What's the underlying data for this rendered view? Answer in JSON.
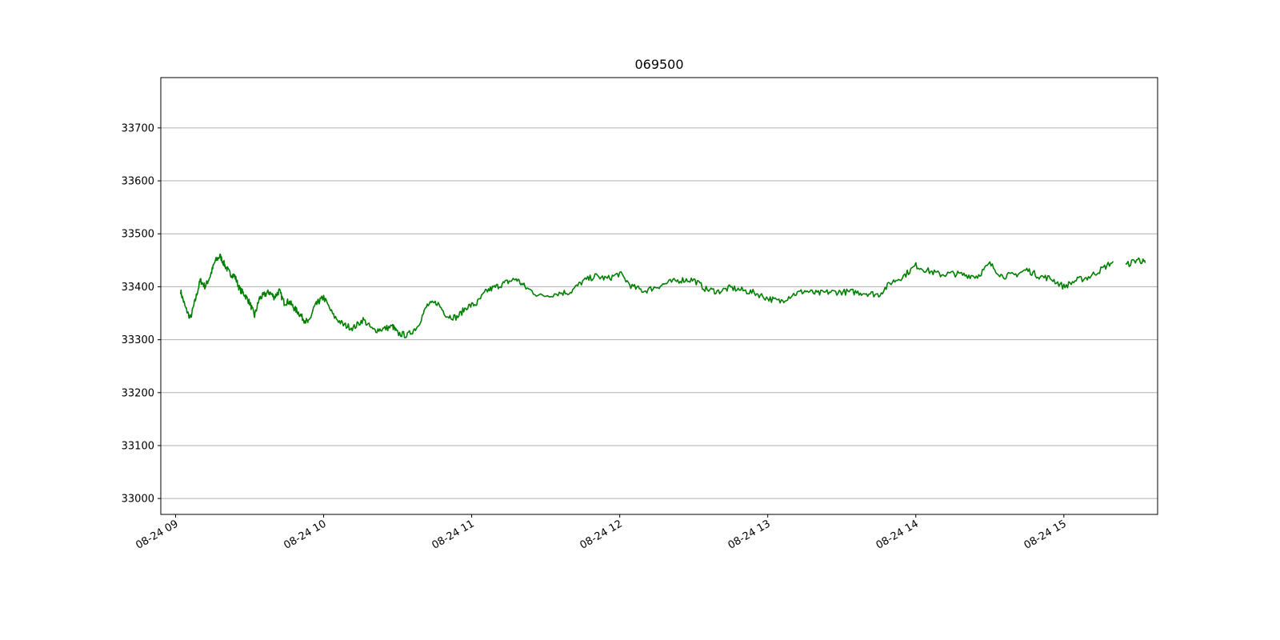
{
  "chart_data": {
    "type": "line",
    "title": "069500",
    "xlabel": "",
    "ylabel": "",
    "grid": "horizontal",
    "ylim": [
      32970,
      33795
    ],
    "xlim": [
      "08-24 08:54",
      "08-24 15:38"
    ],
    "y_ticks": [
      33000,
      33100,
      33200,
      33300,
      33400,
      33500,
      33600,
      33700
    ],
    "x_ticks": [
      "08-24 09",
      "08-24 10",
      "08-24 11",
      "08-24 12",
      "08-24 13",
      "08-24 14",
      "08-24 15"
    ],
    "colors": {
      "line": "#008000",
      "grid": "#b0b0b0",
      "axes": "#000000"
    },
    "series": [
      {
        "x": [
          "08-24 09:02",
          "08-24 09:04",
          "08-24 09:06",
          "08-24 09:08",
          "08-24 09:10",
          "08-24 09:12",
          "08-24 09:14",
          "08-24 09:16",
          "08-24 09:18",
          "08-24 09:20",
          "08-24 09:22",
          "08-24 09:24",
          "08-24 09:26",
          "08-24 09:28",
          "08-24 09:30",
          "08-24 09:32",
          "08-24 09:34",
          "08-24 09:36",
          "08-24 09:38",
          "08-24 09:40",
          "08-24 09:42",
          "08-24 09:44",
          "08-24 09:46",
          "08-24 09:48",
          "08-24 09:50",
          "08-24 09:52",
          "08-24 09:54",
          "08-24 09:56",
          "08-24 09:58",
          "08-24 10:00",
          "08-24 10:04",
          "08-24 10:08",
          "08-24 10:12",
          "08-24 10:16",
          "08-24 10:20",
          "08-24 10:24",
          "08-24 10:28",
          "08-24 10:30",
          "08-24 10:34",
          "08-24 10:38",
          "08-24 10:42",
          "08-24 10:46",
          "08-24 10:50",
          "08-24 10:54",
          "08-24 10:58",
          "08-24 11:02",
          "08-24 11:06",
          "08-24 11:10",
          "08-24 11:14",
          "08-24 11:18",
          "08-24 11:22",
          "08-24 11:28",
          "08-24 11:35",
          "08-24 11:40",
          "08-24 11:45",
          "08-24 11:50",
          "08-24 11:55",
          "08-24 12:00",
          "08-24 12:05",
          "08-24 12:10",
          "08-24 12:15",
          "08-24 12:20",
          "08-24 12:25",
          "08-24 12:30",
          "08-24 12:35",
          "08-24 12:40",
          "08-24 12:45",
          "08-24 12:50",
          "08-24 12:55",
          "08-24 13:00",
          "08-24 13:05",
          "08-24 13:10",
          "08-24 13:15",
          "08-24 13:20",
          "08-24 13:25",
          "08-24 13:30",
          "08-24 13:35",
          "08-24 13:40",
          "08-24 13:45",
          "08-24 13:50",
          "08-24 13:55",
          "08-24 14:00",
          "08-24 14:05",
          "08-24 14:10",
          "08-24 14:15",
          "08-24 14:20",
          "08-24 14:25",
          "08-24 14:30",
          "08-24 14:35",
          "08-24 14:40",
          "08-24 14:45",
          "08-24 14:50",
          "08-24 14:55",
          "08-24 15:00",
          "08-24 15:05",
          "08-24 15:10",
          "08-24 15:15",
          "08-24 15:20"
        ],
        "y": [
          33392,
          33360,
          33340,
          33375,
          33412,
          33400,
          33420,
          33448,
          33458,
          33440,
          33425,
          33420,
          33395,
          33385,
          33370,
          33345,
          33378,
          33385,
          33390,
          33380,
          33392,
          33370,
          33372,
          33360,
          33350,
          33338,
          33332,
          33360,
          33372,
          33380,
          33345,
          33328,
          33322,
          33338,
          33318,
          33320,
          33325,
          33312,
          33308,
          33325,
          33365,
          33370,
          33345,
          33342,
          33362,
          33368,
          33392,
          33400,
          33408,
          33415,
          33398,
          33382,
          33388,
          33390,
          33410,
          33420,
          33415,
          33425,
          33400,
          33392,
          33400,
          33408,
          33413,
          33413,
          33395,
          33391,
          33398,
          33393,
          33388,
          33378,
          33372,
          33385,
          33392,
          33387,
          33390,
          33390,
          33390,
          33388,
          33385,
          33408,
          33420,
          33440,
          33430,
          33423,
          33425,
          33422,
          33420,
          33443,
          33420,
          33422,
          33432,
          33420,
          33415,
          33400,
          33412,
          33418,
          33432,
          33448
        ]
      },
      {
        "x": [
          "08-24 15:25",
          "08-24 15:30",
          "08-24 15:33"
        ],
        "y": [
          33440,
          33452,
          33445
        ]
      }
    ]
  }
}
